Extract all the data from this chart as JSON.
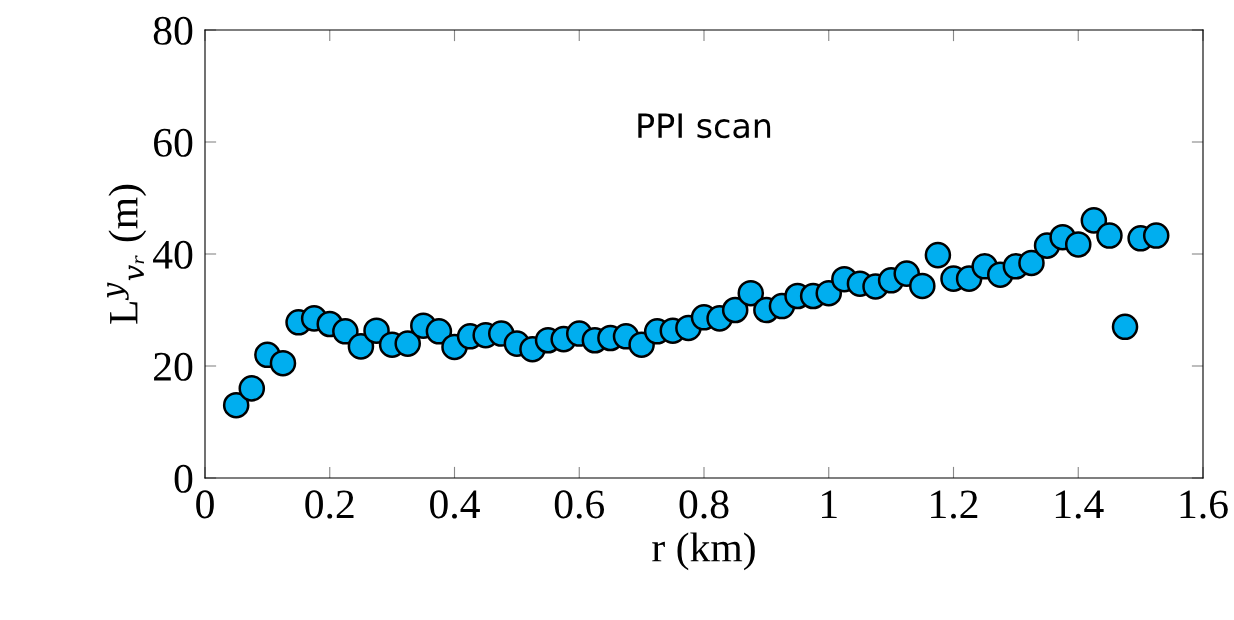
{
  "chart_data": {
    "type": "scatter",
    "xlabel": "r (km)",
    "ylabel": "L$^{y}$$_{vᵣ}$ (m)",
    "annotations": [
      "PPI scan"
    ],
    "x": [
      0.05,
      0.075,
      0.1,
      0.125,
      0.15,
      0.175,
      0.2,
      0.225,
      0.25,
      0.275,
      0.3,
      0.325,
      0.35,
      0.375,
      0.4,
      0.425,
      0.45,
      0.475,
      0.5,
      0.525,
      0.55,
      0.575,
      0.6,
      0.625,
      0.65,
      0.675,
      0.7,
      0.725,
      0.75,
      0.775,
      0.8,
      0.825,
      0.85,
      0.875,
      0.9,
      0.925,
      0.95,
      0.975,
      1.0,
      1.025,
      1.05,
      1.075,
      1.1,
      1.125,
      1.15,
      1.175,
      1.2,
      1.225,
      1.25,
      1.275,
      1.3,
      1.325,
      1.35,
      1.375,
      1.4,
      1.425,
      1.45,
      1.475,
      1.5,
      1.525
    ],
    "series": [
      {
        "color": "#00aeef",
        "values": [
          13,
          16,
          22,
          20.5,
          27.8,
          28.5,
          27.5,
          26.2,
          23.5,
          26.3,
          23.8,
          24,
          27.2,
          26.2,
          23.4,
          25.3,
          25.5,
          25.8,
          24,
          23,
          24.6,
          24.8,
          25.8,
          24.6,
          25,
          25.3,
          23.8,
          26.2,
          26.3,
          26.8,
          28.7,
          28.5,
          30,
          33,
          30,
          30.7,
          32.5,
          32.5,
          33,
          35.5,
          34.7,
          34.2,
          35.3,
          36.5,
          34.3,
          39.8,
          35.6,
          35.6,
          37.8,
          36.3,
          37.8,
          38.4,
          41.5,
          43,
          41.7,
          46,
          43.3,
          27,
          42.8,
          43.3
        ]
      }
    ],
    "marker": "circle",
    "xlim": [
      0,
      1.6
    ],
    "xticks": [
      0,
      0.2,
      0.4,
      0.6,
      0.8,
      1,
      1.2,
      1.4,
      1.6
    ],
    "ylim": [
      0,
      80
    ],
    "yticks": [
      0,
      20,
      40,
      60,
      80
    ],
    "grid": false,
    "legend": false
  }
}
